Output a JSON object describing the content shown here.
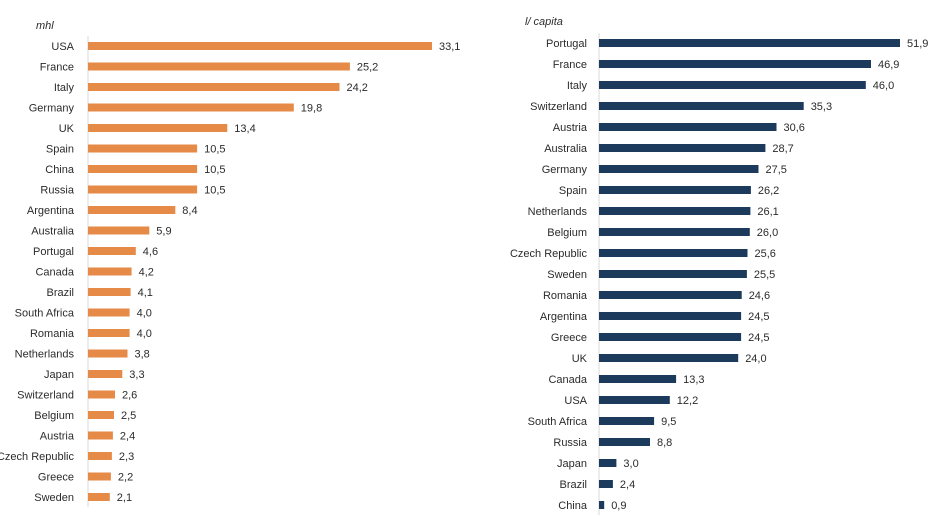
{
  "chart_data": [
    {
      "type": "bar",
      "orientation": "horizontal",
      "title": "",
      "unit_label": "mhl",
      "color": "#e68a47",
      "xlim": [
        0,
        33.1
      ],
      "categories": [
        "USA",
        "France",
        "Italy",
        "Germany",
        "UK",
        "Spain",
        "China",
        "Russia",
        "Argentina",
        "Australia",
        "Portugal",
        "Canada",
        "Brazil",
        "South Africa",
        "Romania",
        "Netherlands",
        "Japan",
        "Switzerland",
        "Belgium",
        "Austria",
        "Czech Republic",
        "Greece",
        "Sweden"
      ],
      "values": [
        33.1,
        25.2,
        24.2,
        19.8,
        13.4,
        10.5,
        10.5,
        10.5,
        8.4,
        5.9,
        4.6,
        4.2,
        4.1,
        4.0,
        4.0,
        3.8,
        3.3,
        2.6,
        2.5,
        2.4,
        2.3,
        2.2,
        2.1
      ],
      "labels": [
        "33,1",
        "25,2",
        "24,2",
        "19,8",
        "13,4",
        "10,5",
        "10,5",
        "10,5",
        "8,4",
        "5,9",
        "4,6",
        "4,2",
        "4,1",
        "4,0",
        "4,0",
        "3,8",
        "3,3",
        "2,6",
        "2,5",
        "2,4",
        "2,3",
        "2,2",
        "2,1"
      ]
    },
    {
      "type": "bar",
      "orientation": "horizontal",
      "title": "",
      "unit_label": "l/ capita",
      "color": "#1c3a5c",
      "xlim": [
        0,
        51.9
      ],
      "categories": [
        "Portugal",
        "France",
        "Italy",
        "Switzerland",
        "Austria",
        "Australia",
        "Germany",
        "Spain",
        "Netherlands",
        "Belgium",
        "Czech Republic",
        "Sweden",
        "Romania",
        "Argentina",
        "Greece",
        "UK",
        "Canada",
        "USA",
        "South Africa",
        "Russia",
        "Japan",
        "Brazil",
        "China"
      ],
      "values": [
        51.9,
        46.9,
        46.0,
        35.3,
        30.6,
        28.7,
        27.5,
        26.2,
        26.1,
        26.0,
        25.6,
        25.5,
        24.6,
        24.5,
        24.5,
        24.0,
        13.3,
        12.2,
        9.5,
        8.8,
        3.0,
        2.4,
        0.9
      ],
      "labels": [
        "51,9",
        "46,9",
        "46,0",
        "35,3",
        "30,6",
        "28,7",
        "27,5",
        "26,2",
        "26,1",
        "26,0",
        "25,6",
        "25,5",
        "24,6",
        "24,5",
        "24,5",
        "24,0",
        "13,3",
        "12,2",
        "9,5",
        "8,8",
        "3,0",
        "2,4",
        "0,9"
      ]
    }
  ]
}
